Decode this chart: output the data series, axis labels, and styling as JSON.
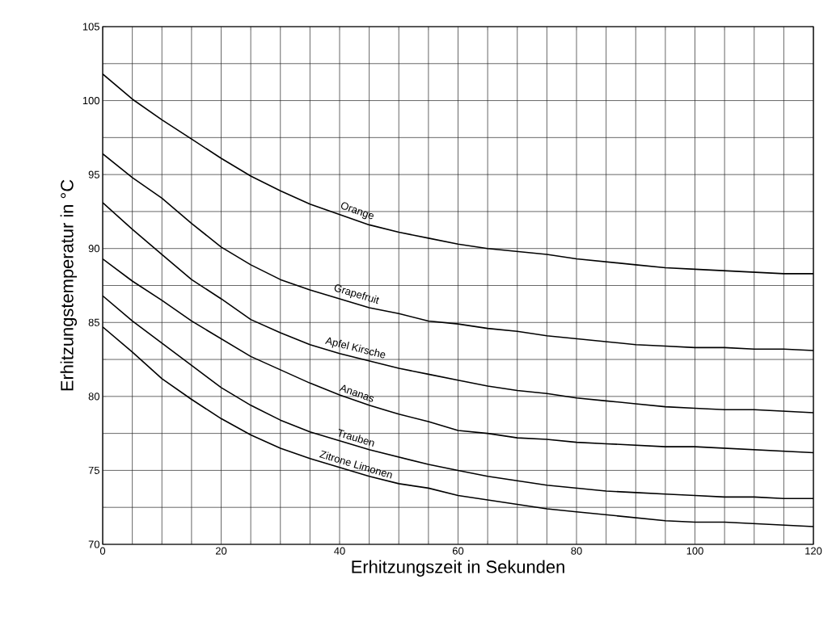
{
  "chart_data": {
    "type": "line",
    "xlabel": "Erhitzungszeit in Sekunden",
    "ylabel": "Erhitzungstemperatur in °C",
    "x": [
      0,
      5,
      10,
      15,
      20,
      25,
      30,
      35,
      40,
      45,
      50,
      55,
      60,
      65,
      70,
      75,
      80,
      85,
      90,
      95,
      100,
      105,
      110,
      115,
      120
    ],
    "series": [
      {
        "name": "Orange",
        "color": "#000000",
        "values": [
          101.8,
          100.1,
          98.7,
          97.4,
          96.1,
          94.9,
          93.9,
          93.0,
          92.3,
          91.6,
          91.1,
          90.7,
          90.3,
          90.0,
          89.8,
          89.6,
          89.3,
          89.1,
          88.9,
          88.7,
          88.6,
          88.5,
          88.4,
          88.3,
          88.3
        ]
      },
      {
        "name": "Grapefruit",
        "color": "#000000",
        "values": [
          96.4,
          94.8,
          93.4,
          91.7,
          90.1,
          88.9,
          87.9,
          87.2,
          86.6,
          86.0,
          85.6,
          85.1,
          84.9,
          84.6,
          84.4,
          84.1,
          83.9,
          83.7,
          83.5,
          83.4,
          83.3,
          83.3,
          83.2,
          83.2,
          83.1
        ]
      },
      {
        "name": "Apfel Kirsche",
        "color": "#000000",
        "values": [
          93.1,
          91.3,
          89.6,
          87.9,
          86.6,
          85.2,
          84.3,
          83.5,
          82.9,
          82.4,
          81.9,
          81.5,
          81.1,
          80.7,
          80.4,
          80.2,
          79.9,
          79.7,
          79.5,
          79.3,
          79.2,
          79.1,
          79.1,
          79.0,
          78.9
        ]
      },
      {
        "name": "Ananas",
        "color": "#000000",
        "values": [
          89.3,
          87.8,
          86.5,
          85.1,
          83.9,
          82.7,
          81.8,
          80.9,
          80.1,
          79.4,
          78.8,
          78.3,
          77.7,
          77.5,
          77.2,
          77.1,
          76.9,
          76.8,
          76.7,
          76.6,
          76.6,
          76.5,
          76.4,
          76.3,
          76.2
        ]
      },
      {
        "name": "Trauben",
        "color": "#000000",
        "values": [
          86.8,
          85.1,
          83.6,
          82.1,
          80.6,
          79.4,
          78.4,
          77.6,
          77.0,
          76.4,
          75.9,
          75.4,
          75.0,
          74.6,
          74.3,
          74.0,
          73.8,
          73.6,
          73.5,
          73.4,
          73.3,
          73.2,
          73.2,
          73.1,
          73.1
        ]
      },
      {
        "name": "Zitrone Limonen",
        "color": "#000000",
        "values": [
          84.7,
          83.0,
          81.2,
          79.8,
          78.5,
          77.4,
          76.5,
          75.8,
          75.2,
          74.6,
          74.1,
          73.8,
          73.3,
          73.0,
          72.7,
          72.4,
          72.2,
          72.0,
          71.8,
          71.6,
          71.5,
          71.5,
          71.4,
          71.3,
          71.2
        ]
      }
    ],
    "xlim": [
      0,
      120
    ],
    "ylim": [
      70,
      105
    ],
    "xticks": [
      0,
      {
        "value": 5,
        "label": null
      },
      {
        "value": 10,
        "label": null
      },
      {
        "value": 15,
        "label": null
      },
      20,
      {
        "value": 25,
        "label": null
      },
      {
        "value": 30,
        "label": null
      },
      {
        "value": 35,
        "label": null
      },
      40,
      {
        "value": 45,
        "label": null
      },
      {
        "value": 50,
        "label": null
      },
      {
        "value": 55,
        "label": null
      },
      60,
      {
        "value": 65,
        "label": null
      },
      {
        "value": 70,
        "label": null
      },
      {
        "value": 75,
        "label": null
      },
      80,
      {
        "value": 85,
        "label": null
      },
      {
        "value": 90,
        "label": null
      },
      {
        "value": 95,
        "label": null
      },
      100,
      {
        "value": 105,
        "label": null
      },
      {
        "value": 110,
        "label": null
      },
      {
        "value": 115,
        "label": null
      },
      120
    ],
    "yticks": [
      70,
      {
        "value": 72.5,
        "label": null
      },
      75,
      {
        "value": 77.5,
        "label": null
      },
      80,
      {
        "value": 82.5,
        "label": null
      },
      85,
      {
        "value": 87.5,
        "label": null
      },
      90,
      {
        "value": 92.5,
        "label": null
      },
      95,
      {
        "value": 97.5,
        "label": null
      },
      100,
      {
        "value": 102.5,
        "label": null
      },
      105
    ],
    "grid": true,
    "marker": "none",
    "line_style": "solid"
  }
}
